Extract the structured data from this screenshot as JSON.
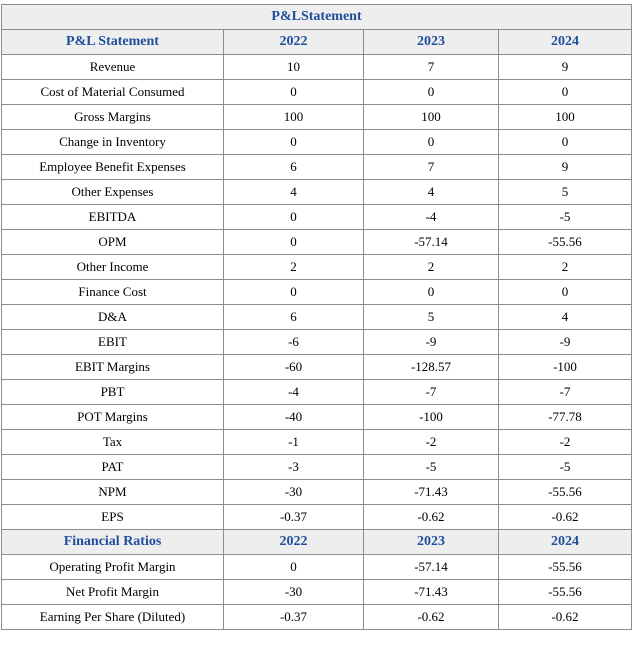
{
  "title": "P&LStatement",
  "pl_header": [
    "P&L Statement",
    "2022",
    "2023",
    "2024"
  ],
  "pl_rows": [
    {
      "label": "Revenue",
      "values": [
        "10",
        "7",
        "9"
      ]
    },
    {
      "label": "Cost of Material Consumed",
      "values": [
        "0",
        "0",
        "0"
      ]
    },
    {
      "label": "Gross Margins",
      "values": [
        "100",
        "100",
        "100"
      ]
    },
    {
      "label": "Change in Inventory",
      "values": [
        "0",
        "0",
        "0"
      ]
    },
    {
      "label": "Employee Benefit Expenses",
      "values": [
        "6",
        "7",
        "9"
      ]
    },
    {
      "label": "Other Expenses",
      "values": [
        "4",
        "4",
        "5"
      ]
    },
    {
      "label": "EBITDA",
      "values": [
        "0",
        "-4",
        "-5"
      ]
    },
    {
      "label": "OPM",
      "values": [
        "0",
        "-57.14",
        "-55.56"
      ]
    },
    {
      "label": "Other Income",
      "values": [
        "2",
        "2",
        "2"
      ]
    },
    {
      "label": "Finance Cost",
      "values": [
        "0",
        "0",
        "0"
      ]
    },
    {
      "label": "D&A",
      "values": [
        "6",
        "5",
        "4"
      ]
    },
    {
      "label": "EBIT",
      "values": [
        "-6",
        "-9",
        "-9"
      ]
    },
    {
      "label": "EBIT Margins",
      "values": [
        "-60",
        "-128.57",
        "-100"
      ]
    },
    {
      "label": "PBT",
      "values": [
        "-4",
        "-7",
        "-7"
      ]
    },
    {
      "label": "POT Margins",
      "values": [
        "-40",
        "-100",
        "-77.78"
      ]
    },
    {
      "label": "Tax",
      "values": [
        "-1",
        "-2",
        "-2"
      ]
    },
    {
      "label": "PAT",
      "values": [
        "-3",
        "-5",
        "-5"
      ]
    },
    {
      "label": "NPM",
      "values": [
        "-30",
        "-71.43",
        "-55.56"
      ]
    },
    {
      "label": "EPS",
      "values": [
        "-0.37",
        "-0.62",
        "-0.62"
      ]
    }
  ],
  "ratios_header": [
    "Financial Ratios",
    "2022",
    "2023",
    "2024"
  ],
  "ratios_rows": [
    {
      "label": "Operating Profit Margin",
      "values": [
        "0",
        "-57.14",
        "-55.56"
      ]
    },
    {
      "label": "Net Profit Margin",
      "values": [
        "-30",
        "-71.43",
        "-55.56"
      ]
    },
    {
      "label": "Earning Per Share (Diluted)",
      "values": [
        "-0.37",
        "-0.62",
        "-0.62"
      ]
    }
  ],
  "colors": {
    "header_text": "#1f4e9c",
    "header_bg": "#eeeeee",
    "border": "#8c8c8c"
  }
}
